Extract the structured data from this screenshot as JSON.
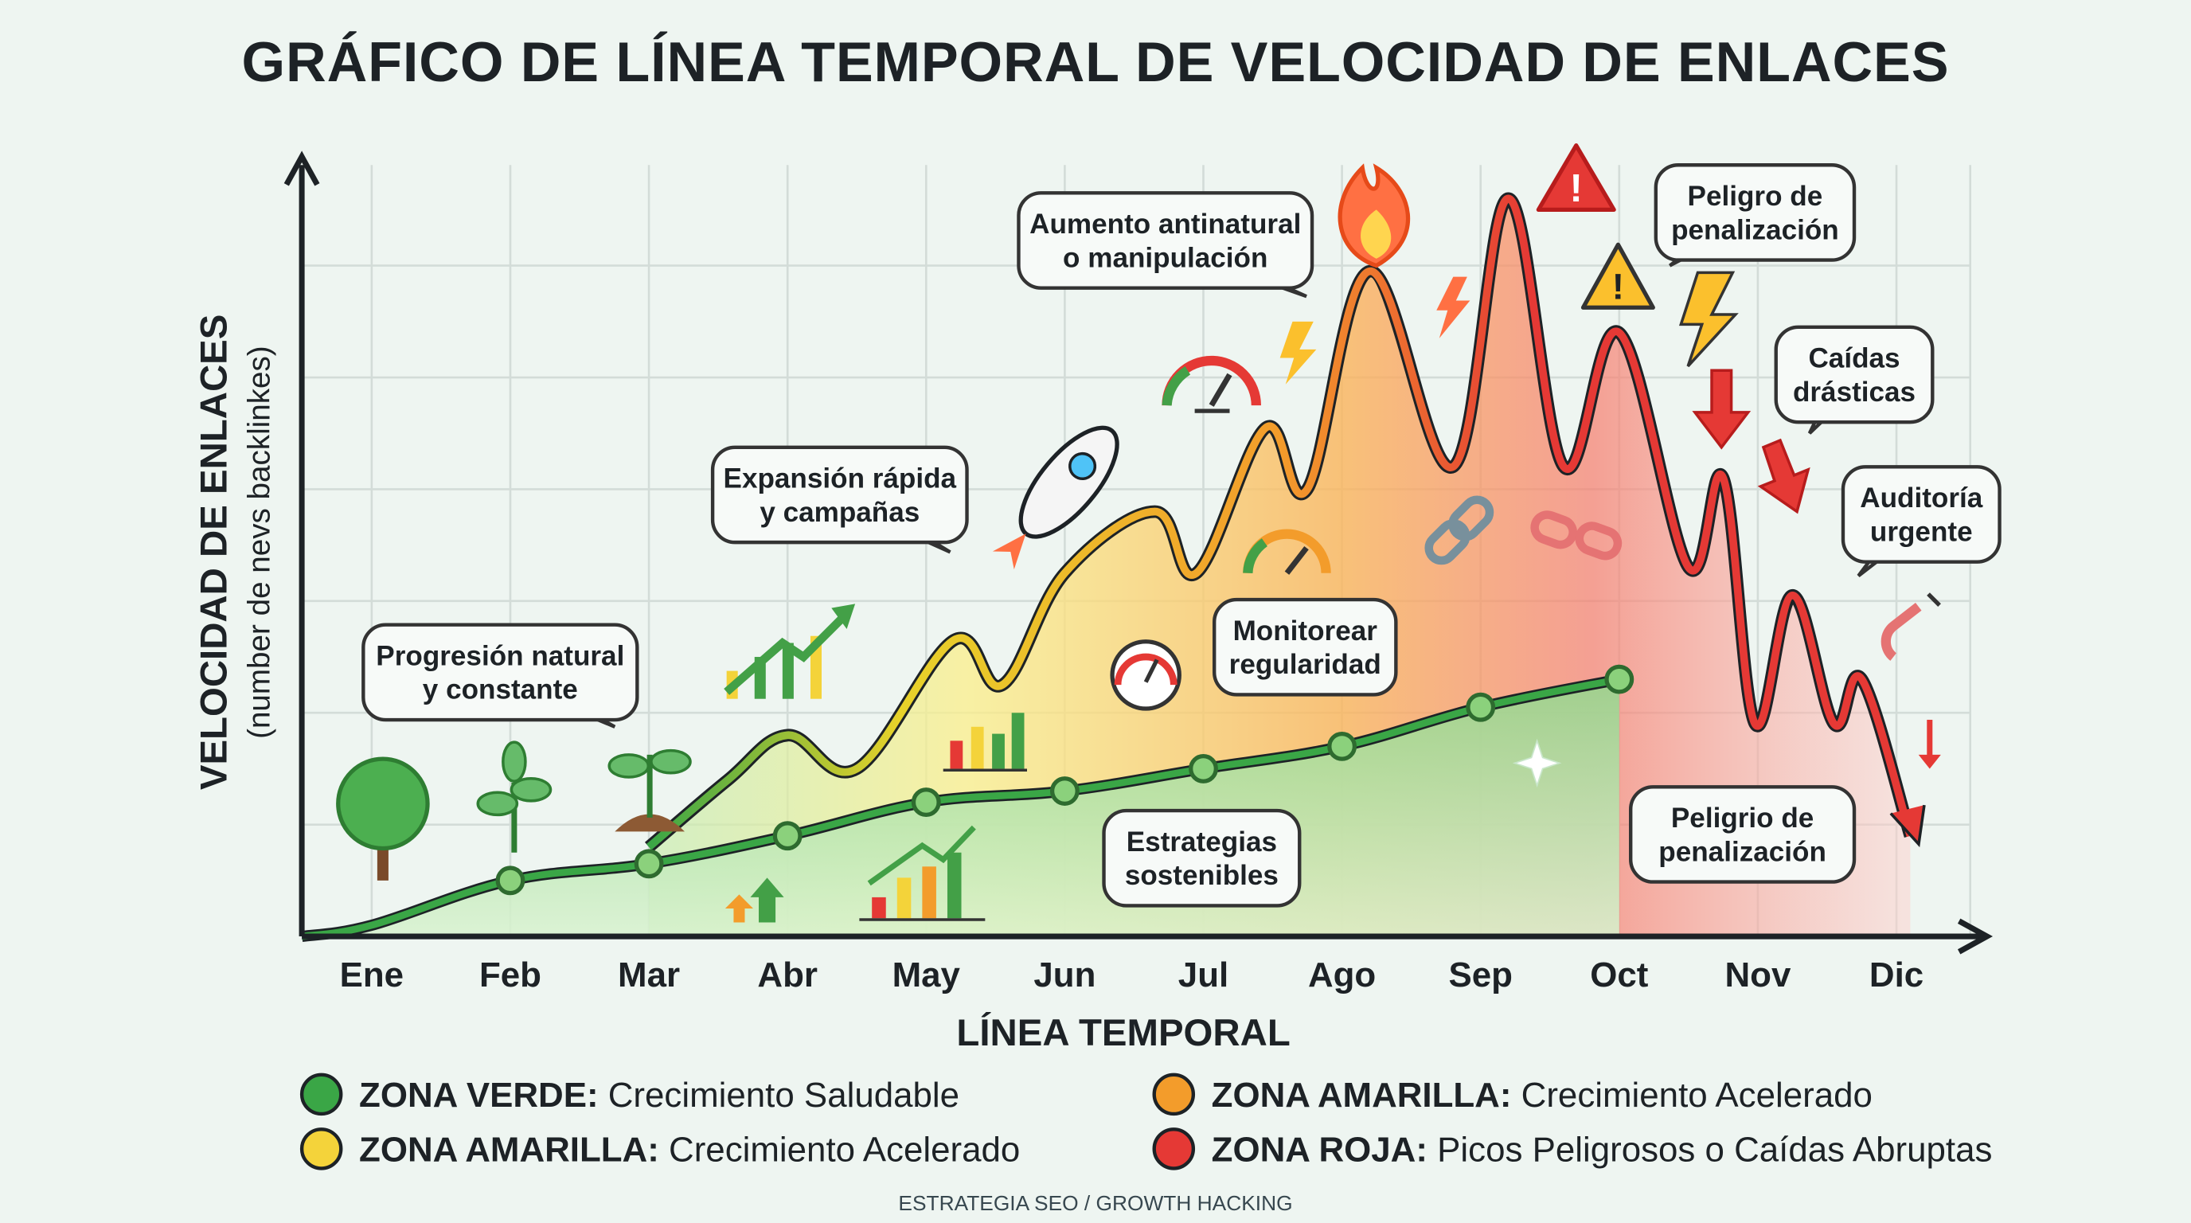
{
  "chart_data": {
    "type": "line",
    "title": "GRÁFICO DE LÍNEA TEMPORAL DE VELOCIDAD DE ENLACES",
    "xlabel": "LÍNEA TEMPORAL",
    "ylabel": "VELOCIDAD DE ENLACES",
    "ylabel_sub": "(number de nevs backlinkes)",
    "categories": [
      "Ene",
      "Feb",
      "Mar",
      "Abr",
      "May",
      "Jun",
      "Jul",
      "Ago",
      "Sep",
      "Oct",
      "Nov",
      "Dic"
    ],
    "grid": true,
    "y_tick_labels": false,
    "series": [
      {
        "color": "#3aa646",
        "points": [
          [
            1,
            0.1
          ],
          [
            2,
            0.5
          ],
          [
            3,
            0.65
          ],
          [
            4,
            0.9
          ],
          [
            5,
            1.2
          ],
          [
            6,
            1.3
          ],
          [
            7,
            1.5
          ],
          [
            8,
            1.7
          ],
          [
            9,
            2.05
          ],
          [
            10,
            2.3
          ]
        ]
      },
      {
        "colors": [
          "#3aa646",
          "#e8d22a",
          "#f39c2b",
          "#e53935"
        ],
        "points": [
          [
            3,
            0.8
          ],
          [
            3.57,
            1.4
          ],
          [
            4,
            1.8
          ],
          [
            4.5,
            1.5
          ],
          [
            5.2,
            2.65
          ],
          [
            5.55,
            2.25
          ],
          [
            6,
            3.25
          ],
          [
            6.65,
            3.8
          ],
          [
            6.95,
            3.25
          ],
          [
            7.45,
            4.55
          ],
          [
            7.75,
            4.0
          ],
          [
            8.2,
            5.95
          ],
          [
            8.8,
            4.2
          ],
          [
            9.2,
            6.6
          ],
          [
            9.6,
            4.2
          ],
          [
            10,
            5.4
          ],
          [
            10.5,
            3.3
          ],
          [
            10.75,
            4.1
          ],
          [
            10.98,
            1.9
          ],
          [
            11.25,
            3.05
          ],
          [
            11.55,
            1.9
          ],
          [
            11.75,
            2.3
          ],
          [
            12.1,
            0.9
          ]
        ]
      }
    ],
    "annotations": [
      [
        "Progresión natural",
        "y constante"
      ],
      [
        "Expansión rápida",
        "y campañas"
      ],
      [
        "Aumento antinatural",
        "o manipulación"
      ],
      [
        "Peligro de",
        "penalización"
      ],
      [
        "Caídas",
        "drásticas"
      ],
      [
        "Auditoría",
        "urgente"
      ],
      [
        "Monitorear",
        "regularidad"
      ],
      [
        "Estrategias",
        "sostenibles"
      ],
      [
        "Peligrio de",
        "penalización"
      ]
    ],
    "legend": [
      {
        "label_bold": "ZONA VERDE:",
        "label": " Crecimiento Saludable",
        "color": "#3aa646"
      },
      {
        "label_bold": "ZONA AMARILLA:",
        "label": " Crecimiento Acelerado",
        "color": "#f4d33a"
      },
      {
        "label_bold": "ZONA AMARILLA:",
        "label": " Crecimiento Acelerado",
        "color": "#f39c2b"
      },
      {
        "label_bold": "ZONA ROJA:",
        "label": " Picos Peligrosos o Caídas Abruptas",
        "color": "#e53935"
      }
    ]
  },
  "footer": "ESTRATEGIA SEO / GROWTH HACKING"
}
